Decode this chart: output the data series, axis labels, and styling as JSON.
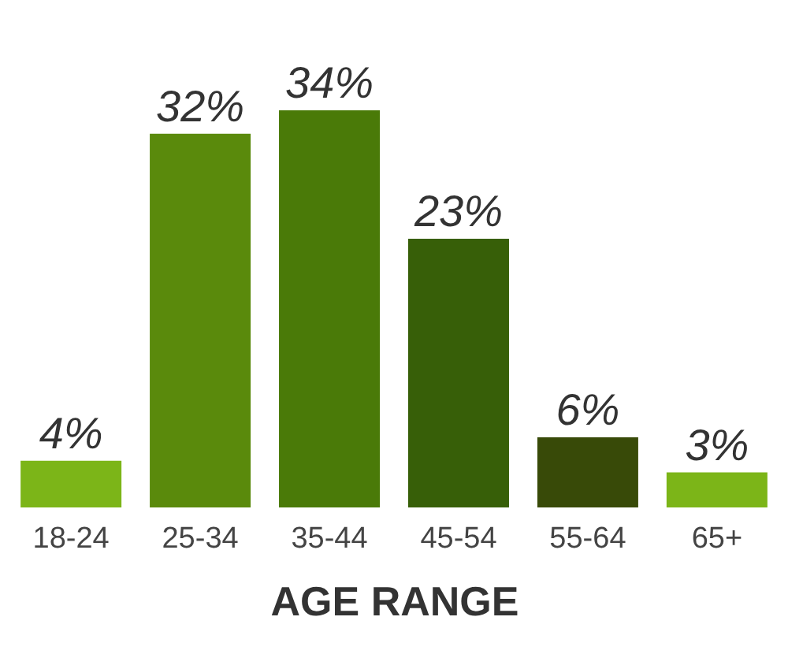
{
  "chart_data": {
    "type": "bar",
    "xlabel": "AGE RANGE",
    "categories": [
      "18-24",
      "25-34",
      "35-44",
      "45-54",
      "55-64",
      "65+"
    ],
    "values": [
      4,
      32,
      34,
      23,
      6,
      3
    ],
    "value_labels": [
      "4%",
      "32%",
      "34%",
      "23%",
      "6%",
      "3%"
    ],
    "colors": [
      "#7cb518",
      "#5a8a0c",
      "#4a7a08",
      "#375f08",
      "#384a08",
      "#7cb518"
    ],
    "grid": false
  }
}
